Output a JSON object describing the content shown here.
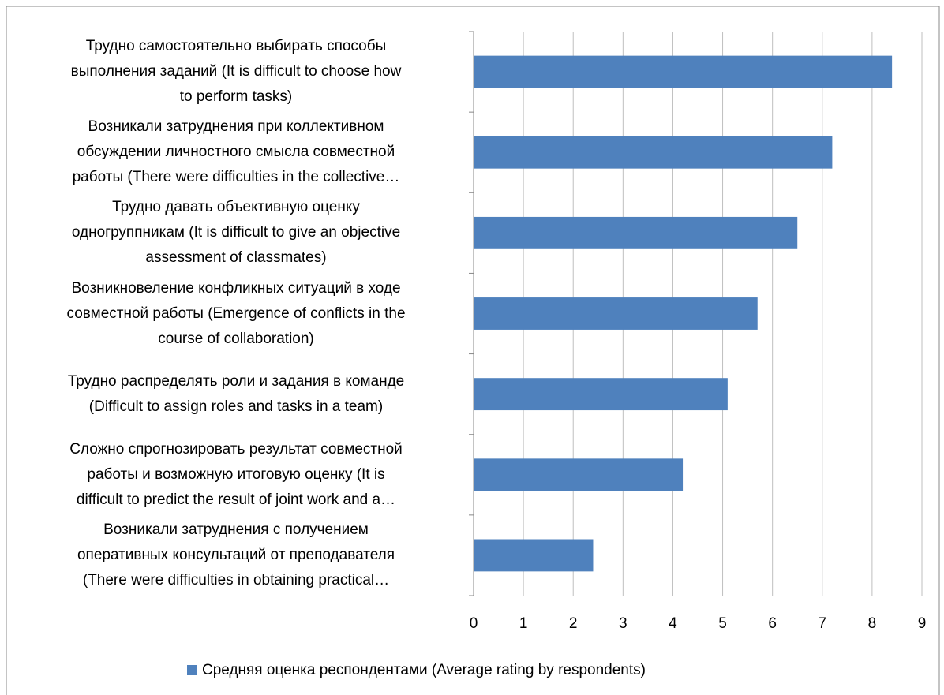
{
  "chart_data": {
    "type": "bar",
    "orientation": "horizontal",
    "categories": [
      "Трудно самостоятельно выбирать способы\nвыполнения заданий (It is difficult to choose how\nto perform tasks)",
      "Возникали затруднения при коллективном\nобсуждении личностного смысла совместной\nработы (There were difficulties in the collective…",
      "Трудно давать объективную оценку\nодногруппникам (It is difficult to give an objective\nassessment of classmates)",
      "Возникновеление конфликных ситуаций в ходе\nсовместной работы (Emergence of conflicts in the\ncourse of collaboration)",
      "Трудно распределять роли и задания в команде\n(Difficult to assign roles and tasks in a team)",
      "Сложно спрогнозировать результат совместной\nработы и возможную итоговую оценку (It is\ndifficult to predict the result of joint work and a…",
      "Возникали затруднения с получением\nоперативных консультаций от преподавателя\n(There were difficulties in obtaining practical…"
    ],
    "series": [
      {
        "name": "Средняя оценка респондентами (Average rating by respondents)",
        "color": "#4f81bd",
        "values": [
          8.4,
          7.2,
          6.5,
          5.7,
          5.1,
          4.2,
          2.4
        ]
      }
    ],
    "xlim": [
      0,
      9
    ],
    "xticks": [
      0,
      1,
      2,
      3,
      4,
      5,
      6,
      7,
      8,
      9
    ],
    "grid": true,
    "legend": "bottom"
  }
}
